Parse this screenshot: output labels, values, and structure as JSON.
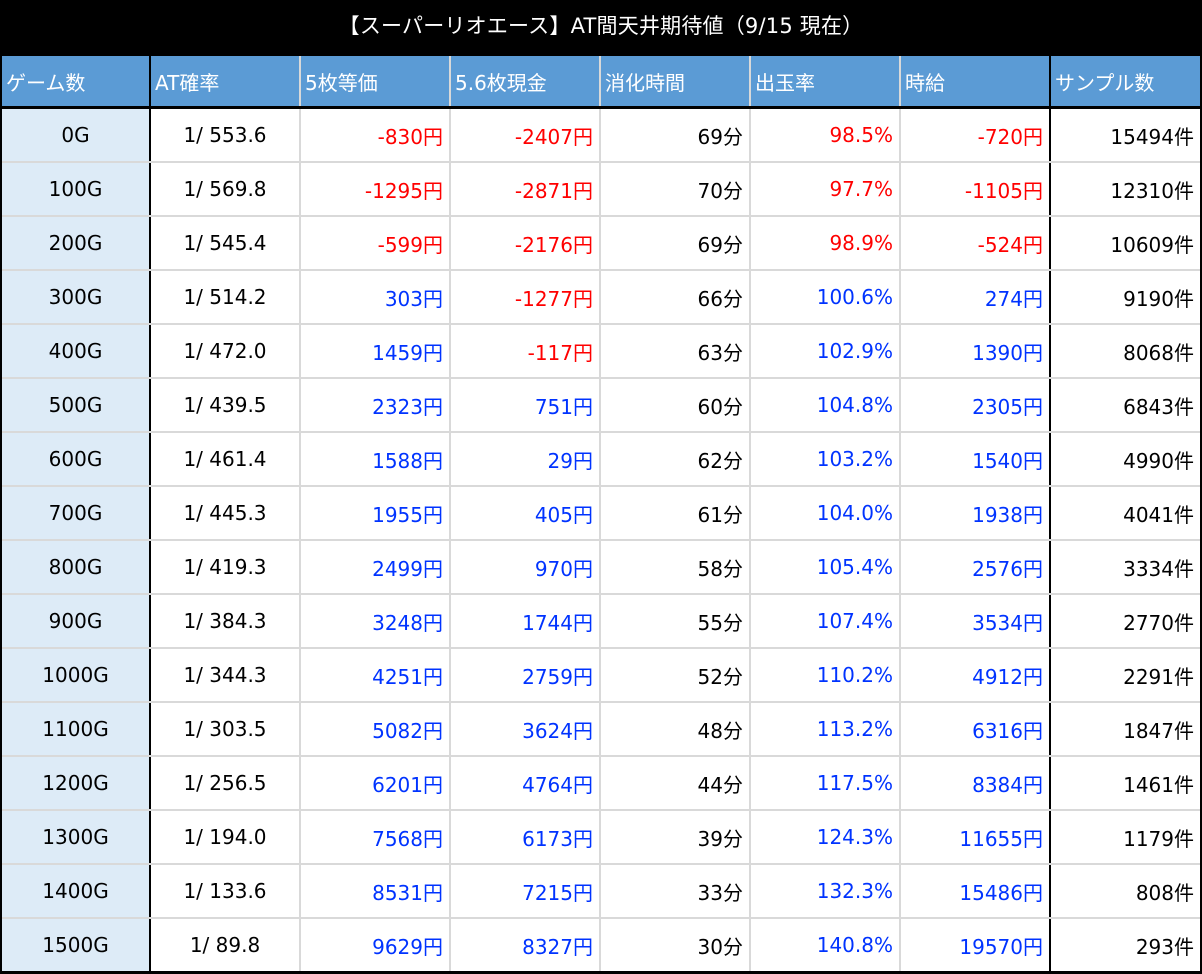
{
  "title": "【スーパーリオエース】AT間天井期待値（9/15 現在）",
  "colors": {
    "header_bg": "#5b9bd5",
    "game_col_bg": "#ddebf7",
    "negative": "#ff0000",
    "positive": "#0033ff",
    "title_bg": "#000000"
  },
  "headers": [
    "ゲーム数",
    "AT確率",
    "5枚等価",
    "5.6枚現金",
    "消化時間",
    "出玉率",
    "時給",
    "サンプル数"
  ],
  "rows": [
    {
      "game": "0G",
      "rate": "1/ 553.6",
      "eq5": "-830円",
      "cash56": "-2407円",
      "time": "69分",
      "payout": "98.5%",
      "hourly": "-720円",
      "samples": "15494件"
    },
    {
      "game": "100G",
      "rate": "1/ 569.8",
      "eq5": "-1295円",
      "cash56": "-2871円",
      "time": "70分",
      "payout": "97.7%",
      "hourly": "-1105円",
      "samples": "12310件"
    },
    {
      "game": "200G",
      "rate": "1/ 545.4",
      "eq5": "-599円",
      "cash56": "-2176円",
      "time": "69分",
      "payout": "98.9%",
      "hourly": "-524円",
      "samples": "10609件"
    },
    {
      "game": "300G",
      "rate": "1/ 514.2",
      "eq5": "303円",
      "cash56": "-1277円",
      "time": "66分",
      "payout": "100.6%",
      "hourly": "274円",
      "samples": "9190件"
    },
    {
      "game": "400G",
      "rate": "1/ 472.0",
      "eq5": "1459円",
      "cash56": "-117円",
      "time": "63分",
      "payout": "102.9%",
      "hourly": "1390円",
      "samples": "8068件"
    },
    {
      "game": "500G",
      "rate": "1/ 439.5",
      "eq5": "2323円",
      "cash56": "751円",
      "time": "60分",
      "payout": "104.8%",
      "hourly": "2305円",
      "samples": "6843件"
    },
    {
      "game": "600G",
      "rate": "1/ 461.4",
      "eq5": "1588円",
      "cash56": "29円",
      "time": "62分",
      "payout": "103.2%",
      "hourly": "1540円",
      "samples": "4990件"
    },
    {
      "game": "700G",
      "rate": "1/ 445.3",
      "eq5": "1955円",
      "cash56": "405円",
      "time": "61分",
      "payout": "104.0%",
      "hourly": "1938円",
      "samples": "4041件"
    },
    {
      "game": "800G",
      "rate": "1/ 419.3",
      "eq5": "2499円",
      "cash56": "970円",
      "time": "58分",
      "payout": "105.4%",
      "hourly": "2576円",
      "samples": "3334件"
    },
    {
      "game": "900G",
      "rate": "1/ 384.3",
      "eq5": "3248円",
      "cash56": "1744円",
      "time": "55分",
      "payout": "107.4%",
      "hourly": "3534円",
      "samples": "2770件"
    },
    {
      "game": "1000G",
      "rate": "1/ 344.3",
      "eq5": "4251円",
      "cash56": "2759円",
      "time": "52分",
      "payout": "110.2%",
      "hourly": "4912円",
      "samples": "2291件"
    },
    {
      "game": "1100G",
      "rate": "1/ 303.5",
      "eq5": "5082円",
      "cash56": "3624円",
      "time": "48分",
      "payout": "113.2%",
      "hourly": "6316円",
      "samples": "1847件"
    },
    {
      "game": "1200G",
      "rate": "1/ 256.5",
      "eq5": "6201円",
      "cash56": "4764円",
      "time": "44分",
      "payout": "117.5%",
      "hourly": "8384円",
      "samples": "1461件"
    },
    {
      "game": "1300G",
      "rate": "1/ 194.0",
      "eq5": "7568円",
      "cash56": "6173円",
      "time": "39分",
      "payout": "124.3%",
      "hourly": "11655円",
      "samples": "1179件"
    },
    {
      "game": "1400G",
      "rate": "1/ 133.6",
      "eq5": "8531円",
      "cash56": "7215円",
      "time": "33分",
      "payout": "132.3%",
      "hourly": "15486円",
      "samples": "808件"
    },
    {
      "game": "1500G",
      "rate": "1/ 89.8",
      "eq5": "9629円",
      "cash56": "8327円",
      "time": "30分",
      "payout": "140.8%",
      "hourly": "19570円",
      "samples": "293件"
    }
  ]
}
